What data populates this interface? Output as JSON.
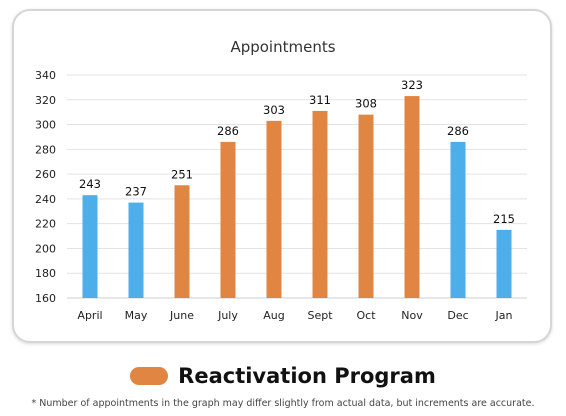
{
  "colors": {
    "highlight": "#e08542",
    "normal": "#4eaeea",
    "grid": "#e3e3e3",
    "text": "#222222"
  },
  "chart_data": {
    "type": "bar",
    "title": "Appointments",
    "categories": [
      "April",
      "May",
      "June",
      "July",
      "Aug",
      "Sept",
      "Oct",
      "Nov",
      "Dec",
      "Jan"
    ],
    "values": [
      243,
      237,
      251,
      286,
      303,
      311,
      308,
      323,
      286,
      215
    ],
    "highlighted": [
      false,
      false,
      true,
      true,
      true,
      true,
      true,
      true,
      false,
      false
    ],
    "ylim": [
      160,
      340
    ],
    "yticks": [
      160,
      180,
      200,
      220,
      240,
      260,
      280,
      300,
      320,
      340
    ],
    "grid": true,
    "legend": "bottom-center",
    "data_labels": true
  },
  "legend": {
    "label": "Reactivation Program"
  },
  "footnote": "* Number of appointments in the graph may differ slightly from actual data, but increments are accurate."
}
